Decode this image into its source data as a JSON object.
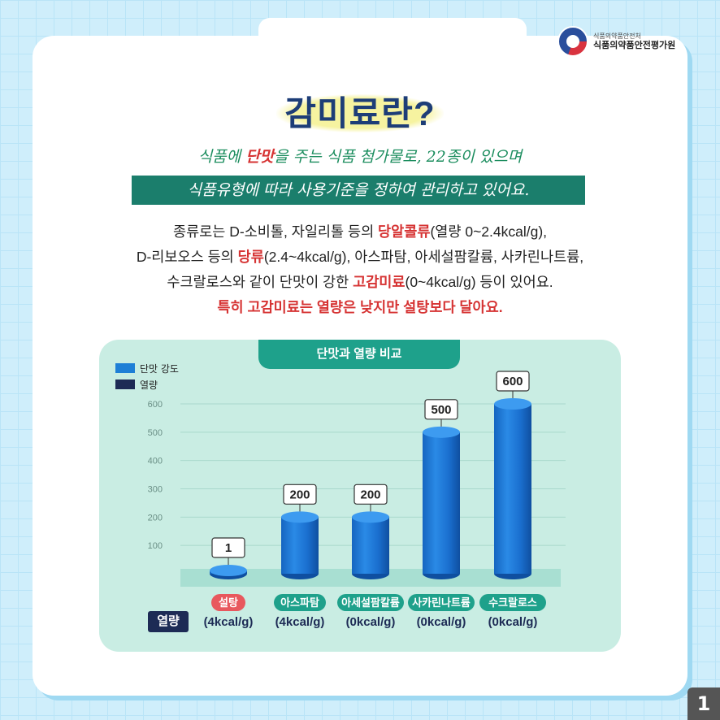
{
  "logo": {
    "small": "식품의약품안전처",
    "big": "식품의약품안전평가원"
  },
  "title": "감미료란?",
  "hand1": {
    "pre": "식품에 ",
    "highlight": "단맛",
    "post": "을 주는 식품 첨가물로, 22종이 있으며"
  },
  "hand2": "식품유형에 따라 사용기준을 정하여 관리하고 있어요.",
  "body": {
    "l1_pre": "종류로는 D-소비톨, 자일리톨 등의 ",
    "l1_red": "당알콜류",
    "l1_post": "(열량 0~2.4kcal/g),",
    "l2_pre": "D-리보오스 등의 ",
    "l2_red": "당류",
    "l2_post": "(2.4~4kcal/g), 아스파탐, 아세설팜칼륨, 사카린나트륨,",
    "l3_pre": "수크랄로스와 같이 단맛이 강한 ",
    "l3_red": "고감미료",
    "l3_post": "(0~4kcal/g) 등이 있어요.",
    "l4": "특히 고감미료는 열량은 낮지만 설탕보다 달아요."
  },
  "chart_tab": "단맛과 열량 비교",
  "legend": {
    "sweet": "단맛 강도",
    "cal": "열량"
  },
  "colors": {
    "sweet": "#1e7fd6",
    "cal": "#1d2b55",
    "sugar_tag": "#e8585e",
    "tag": "#1ea18b"
  },
  "kcal_label": "열량",
  "chart_data": {
    "type": "bar",
    "title": "단맛과 열량 비교",
    "categories": [
      "설탕",
      "아스파탐",
      "아세설팜칼륨",
      "사카린나트륨",
      "수크랄로스"
    ],
    "series": [
      {
        "name": "단맛 강도",
        "values": [
          1,
          200,
          200,
          500,
          600
        ]
      }
    ],
    "data_labels": [
      "1",
      "200",
      "200",
      "500",
      "600"
    ],
    "calories": [
      "(4kcal/g)",
      "(4kcal/g)",
      "(0kcal/g)",
      "(0kcal/g)",
      "(0kcal/g)"
    ],
    "yticks": [
      "100",
      "200",
      "300",
      "400",
      "500",
      "600"
    ],
    "ylim": [
      0,
      600
    ],
    "legend": "top-left",
    "grid": true
  },
  "page_number": "1"
}
